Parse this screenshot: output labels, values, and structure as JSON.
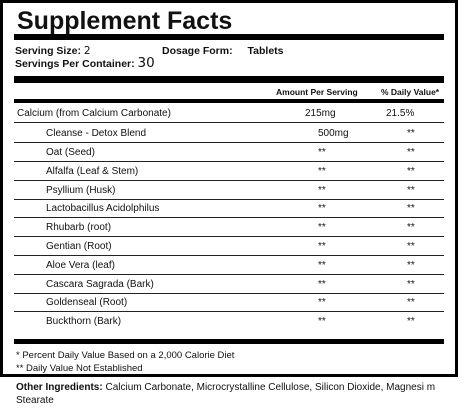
{
  "title": "Supplement Facts",
  "serving": {
    "size_label": "Serving Size:",
    "size_value": "2",
    "form_label": "Dosage Form:",
    "form_value": "Tablets",
    "per_container_label": "Servings Per Container:",
    "per_container_value": "30"
  },
  "columns": {
    "amount": "Amount Per Serving",
    "daily": "% Daily Value*"
  },
  "rows": [
    {
      "name": "Calcium (from Calcium Carbonate)",
      "amount": "215mg",
      "dv": "21.5%"
    },
    {
      "name": "Cleanse - Detox Blend",
      "amount": "500mg",
      "dv": "**"
    },
    {
      "name": "Oat (Seed)",
      "amount": "**",
      "dv": "**"
    },
    {
      "name": "Alfalfa (Leaf & Stem)",
      "amount": "**",
      "dv": "**"
    },
    {
      "name": "Psyllium (Husk)",
      "amount": "**",
      "dv": "**"
    },
    {
      "name": "Lactobacillus Acidolphilus",
      "amount": "**",
      "dv": "**"
    },
    {
      "name": "Rhubarb (root)",
      "amount": "**",
      "dv": "**"
    },
    {
      "name": "Gentian  (Root)",
      "amount": "**",
      "dv": "**"
    },
    {
      "name": "Aloe Vera (leaf)",
      "amount": "**",
      "dv": "**"
    },
    {
      "name": "Cascara Sagrada (Bark)",
      "amount": "**",
      "dv": "**"
    },
    {
      "name": "Goldenseal (Root)",
      "amount": "**",
      "dv": "**"
    },
    {
      "name": "Buckthorn (Bark)",
      "amount": "**",
      "dv": "**"
    }
  ],
  "footnotes": {
    "percent": "* Percent Daily Value Based on a 2,000 Calorie Diet",
    "not_established": "** Daily Value Not Established"
  },
  "other_ingredients": {
    "label": "Other Ingredients:",
    "text": "Calcium Carbonate, Microcrystalline Cellulose, Silicon Dioxide, Magnesi  m Stearate"
  }
}
